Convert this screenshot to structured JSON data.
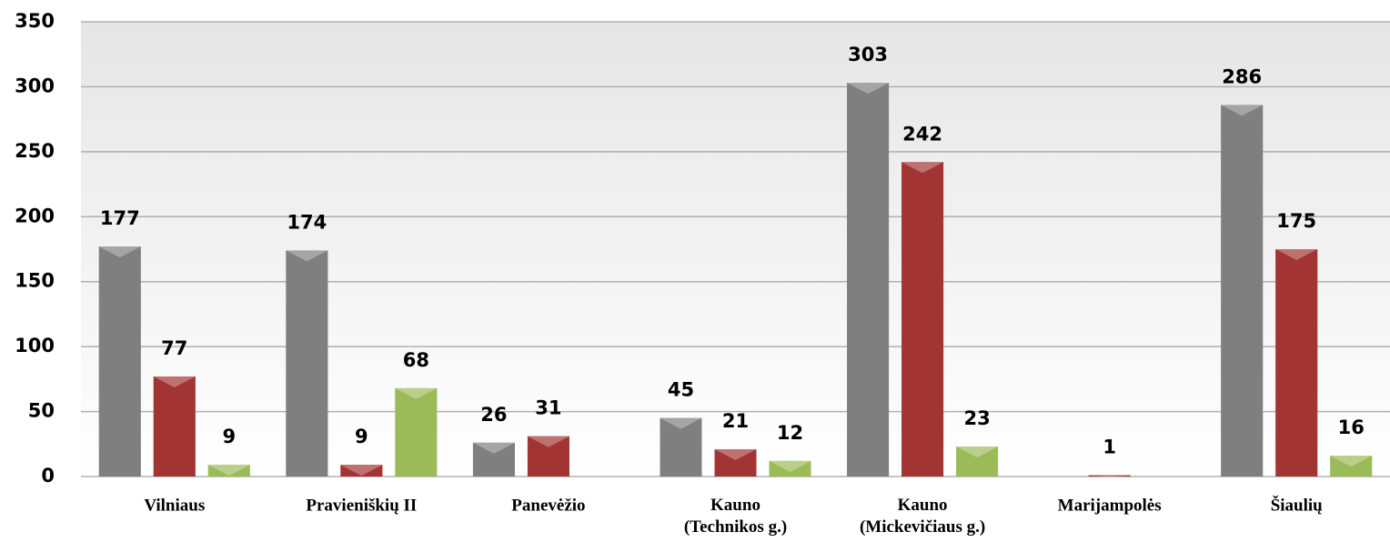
{
  "chart_data": {
    "type": "bar",
    "categories": [
      "Vilniaus",
      "Pravieniškių II",
      "Panevėžio",
      "Kauno\n(Technikos g.)",
      "Kauno\n(Mickevičiaus g.)",
      "Marijampolės",
      "Šiaulių"
    ],
    "series": [
      {
        "color": "#7f7f7f",
        "values": [
          177,
          174,
          26,
          45,
          303,
          null,
          286
        ]
      },
      {
        "color": "#a33434",
        "values": [
          77,
          9,
          31,
          21,
          242,
          1,
          175
        ]
      },
      {
        "color": "#9bbb59",
        "values": [
          9,
          68,
          null,
          12,
          23,
          null,
          16
        ]
      }
    ],
    "ylim": [
      0,
      350
    ],
    "yticks": [
      0,
      50,
      100,
      150,
      200,
      250,
      300,
      350
    ],
    "grid": true
  }
}
